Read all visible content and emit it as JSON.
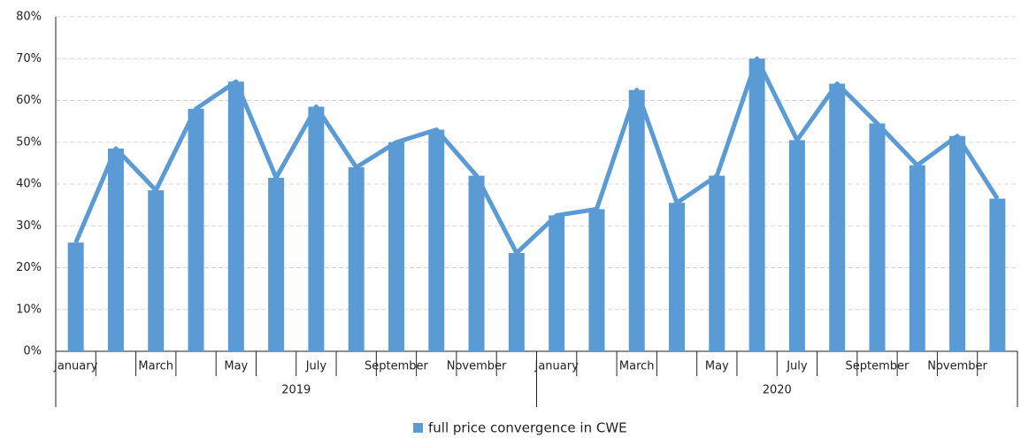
{
  "chart_data": {
    "type": "bar",
    "line_overlay": true,
    "categories": [
      "January",
      null,
      "March",
      null,
      "May",
      null,
      "July",
      null,
      "September",
      null,
      "November",
      null,
      "January",
      null,
      "March",
      null,
      "May",
      null,
      "July",
      null,
      "September",
      null,
      "November",
      null
    ],
    "groups": [
      "2019",
      "2020"
    ],
    "series": [
      {
        "name": "full price convergence in CWE",
        "color": "#5b9bd5",
        "values": [
          26,
          48.5,
          38.5,
          58,
          64.5,
          41.5,
          58.5,
          44,
          50,
          53,
          42,
          23.5,
          32.5,
          34,
          62.5,
          35.5,
          42,
          70,
          50.5,
          64,
          54.5,
          44.5,
          51.5,
          36.5
        ]
      }
    ],
    "ylim": [
      0,
      80
    ],
    "yticks": [
      {
        "value": 0,
        "label": "0%"
      },
      {
        "value": 10,
        "label": "10%"
      },
      {
        "value": 20,
        "label": "20%"
      },
      {
        "value": 30,
        "label": "30%"
      },
      {
        "value": 40,
        "label": "40%"
      },
      {
        "value": 50,
        "label": "50%"
      },
      {
        "value": 60,
        "label": "60%"
      },
      {
        "value": 70,
        "label": "70%"
      },
      {
        "value": 80,
        "label": "80%"
      }
    ],
    "grid": true,
    "legend": "bottom"
  }
}
